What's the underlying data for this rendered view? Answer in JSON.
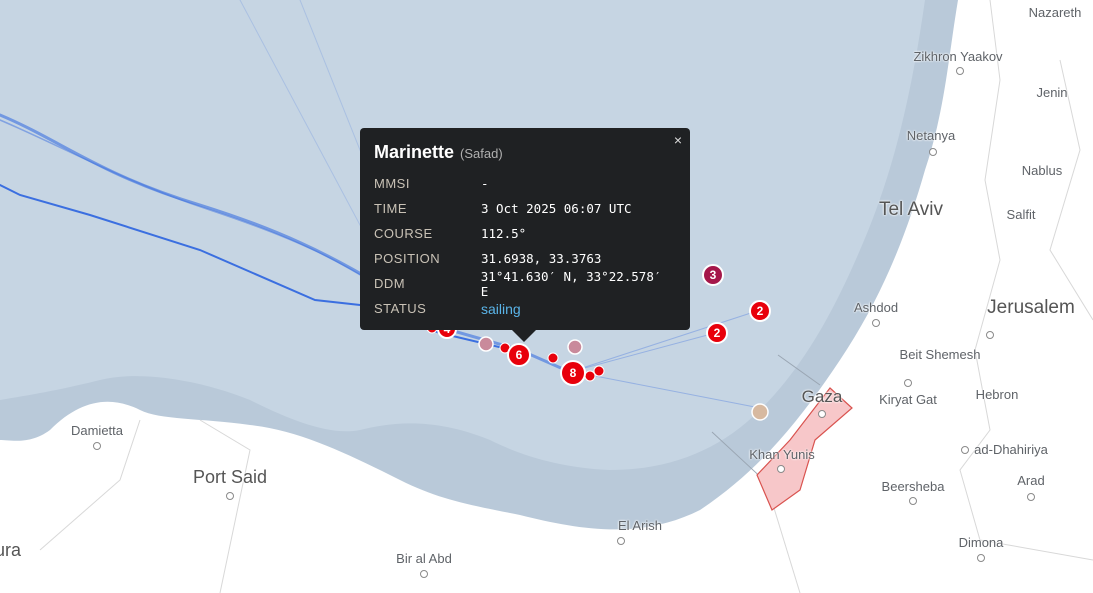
{
  "colors": {
    "sea": "#c6d5e3",
    "territorial_sea": "#b9c9d9",
    "land": "#ffffff",
    "track": "#3b6fe0",
    "marker": "#e8000b",
    "gaza_fill": "#f7c7c9",
    "popup_bg": "#1f2123",
    "status": "#5ab4e8"
  },
  "popup": {
    "vessel_name": "Marinette",
    "flag_name": "(Safad)",
    "close_icon": "×",
    "rows": [
      {
        "label": "MMSI",
        "value": "-"
      },
      {
        "label": "TIME",
        "value": "3 Oct 2025 06:07 UTC"
      },
      {
        "label": "COURSE",
        "value": "112.5°"
      },
      {
        "label": "POSITION",
        "value": "31.6938, 33.3763"
      },
      {
        "label": "DDM",
        "value": "31°41.630′ N, 33°22.578′ E"
      },
      {
        "label": "STATUS",
        "value": "sailing"
      }
    ]
  },
  "clusters": [
    {
      "count": "3"
    },
    {
      "count": "2"
    },
    {
      "count": "2"
    },
    {
      "count": "6"
    },
    {
      "count": "8"
    },
    {
      "count": "4"
    }
  ],
  "cities": [
    {
      "name": "Nazareth"
    },
    {
      "name": "Zikhron Yaakov"
    },
    {
      "name": "Jenin"
    },
    {
      "name": "Netanya"
    },
    {
      "name": "Nablus"
    },
    {
      "name": "Tel Aviv"
    },
    {
      "name": "Salfit"
    },
    {
      "name": "Ashdod"
    },
    {
      "name": "Jerusalem"
    },
    {
      "name": "Beit Shemesh"
    },
    {
      "name": "Gaza"
    },
    {
      "name": "Kiryat Gat"
    },
    {
      "name": "Hebron"
    },
    {
      "name": "ad-Dhahiriya"
    },
    {
      "name": "Khan Yunis"
    },
    {
      "name": "Beersheba"
    },
    {
      "name": "Arad"
    },
    {
      "name": "Dimona"
    },
    {
      "name": "El Arish"
    },
    {
      "name": "Bir al Abd"
    },
    {
      "name": "Damietta"
    },
    {
      "name": "Port Said"
    },
    {
      "name": "ura"
    }
  ]
}
